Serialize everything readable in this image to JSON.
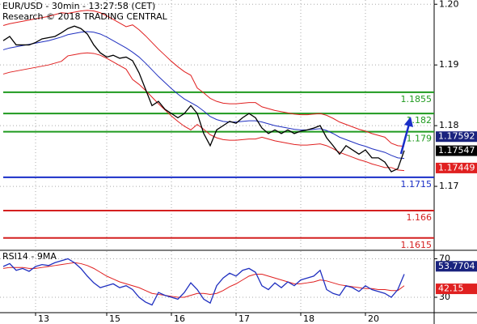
{
  "chart_data": [
    {
      "type": "line",
      "title": "EUR/USD - 30min - 13:27:58 (CET)",
      "subtitle": "Research © 2018 TRADING CENTRAL",
      "categories": [
        null,
        null,
        null,
        null,
        null,
        "13",
        null,
        null,
        null,
        null,
        null,
        null,
        null,
        null,
        null,
        null,
        "15",
        null,
        null,
        null,
        null,
        null,
        null,
        null,
        null,
        null,
        "16",
        null,
        null,
        null,
        null,
        null,
        null,
        null,
        null,
        null,
        "17",
        null,
        null,
        null,
        null,
        null,
        null,
        null,
        null,
        null,
        "18",
        null,
        null,
        null,
        null,
        null,
        null,
        null,
        null,
        null,
        "20",
        null,
        null,
        null,
        null,
        null,
        null
      ],
      "ylim": [
        1.1596,
        1.2007
      ],
      "yticks": [
        1.17,
        1.18,
        1.19,
        {
          "value": 1.2,
          "label": "1.20"
        }
      ],
      "grid": true,
      "series": [
        {
          "color": "#e02020",
          "values": [
            1.1965,
            1.1968,
            1.197,
            1.1972,
            1.1974,
            1.1976,
            1.1978,
            1.198,
            1.1983,
            1.1986,
            1.1985,
            1.1987,
            1.1989,
            1.199,
            1.1989,
            1.1986,
            1.1981,
            1.1975,
            1.1969,
            1.1963,
            1.1966,
            1.1958,
            1.1948,
            1.1937,
            1.1926,
            1.1916,
            1.1906,
            1.1897,
            1.1889,
            1.1883,
            1.1862,
            1.1854,
            1.1845,
            1.184,
            1.1837,
            1.1836,
            1.1836,
            1.1837,
            1.1838,
            1.1838,
            1.1831,
            1.1828,
            1.1825,
            1.1823,
            1.1821,
            1.1819,
            1.1818,
            1.1818,
            1.1819,
            1.182,
            1.1817,
            1.1812,
            1.1806,
            1.1802,
            1.1798,
            1.1794,
            1.1791,
            1.1787,
            1.1784,
            1.1781,
            1.1771,
            1.1767,
            1.1766
          ]
        },
        {
          "color": "#e02020",
          "values": [
            1.1885,
            1.1888,
            1.189,
            1.1892,
            1.1894,
            1.1896,
            1.1898,
            1.19,
            1.1903,
            1.1906,
            1.1915,
            1.1917,
            1.1919,
            1.192,
            1.1919,
            1.1916,
            1.1911,
            1.1905,
            1.1899,
            1.1893,
            1.1876,
            1.1868,
            1.1858,
            1.1847,
            1.1836,
            1.1826,
            1.1816,
            1.1807,
            1.1799,
            1.1793,
            1.1802,
            1.1794,
            1.1785,
            1.178,
            1.1777,
            1.1776,
            1.1776,
            1.1777,
            1.1778,
            1.1778,
            1.1781,
            1.1778,
            1.1775,
            1.1773,
            1.1771,
            1.1769,
            1.1768,
            1.1768,
            1.1769,
            1.177,
            1.1767,
            1.1762,
            1.1756,
            1.1752,
            1.1748,
            1.1744,
            1.1741,
            1.1737,
            1.1734,
            1.1731,
            1.1731,
            1.1727,
            1.1726
          ]
        },
        {
          "color": "#2030c0",
          "values": [
            1.1925,
            1.1928,
            1.193,
            1.1932,
            1.1934,
            1.1936,
            1.1938,
            1.194,
            1.1943,
            1.1946,
            1.195,
            1.1952,
            1.1954,
            1.1955,
            1.1954,
            1.1951,
            1.1946,
            1.194,
            1.1934,
            1.1928,
            1.1921,
            1.1913,
            1.1903,
            1.1892,
            1.1881,
            1.1871,
            1.1861,
            1.1852,
            1.1844,
            1.1838,
            1.1832,
            1.1824,
            1.1815,
            1.181,
            1.1807,
            1.1806,
            1.1806,
            1.1807,
            1.1808,
            1.1808,
            1.1806,
            1.1803,
            1.18,
            1.1798,
            1.1796,
            1.1794,
            1.1793,
            1.1793,
            1.1794,
            1.1795,
            1.1792,
            1.1787,
            1.1781,
            1.1777,
            1.1773,
            1.1769,
            1.1766,
            1.1762,
            1.1759,
            1.1756,
            1.1751,
            1.1747,
            1.1746
          ]
        },
        {
          "color": "#000000",
          "values": [
            1.194,
            1.1947,
            1.1933,
            1.1933,
            1.1933,
            1.1937,
            1.1943,
            1.1945,
            1.1947,
            1.1953,
            1.196,
            1.1964,
            1.196,
            1.1951,
            1.1933,
            1.192,
            1.1913,
            1.1916,
            1.1911,
            1.1913,
            1.1907,
            1.1887,
            1.186,
            1.1833,
            1.184,
            1.1827,
            1.182,
            1.1813,
            1.182,
            1.1833,
            1.182,
            1.1787,
            1.1767,
            1.1793,
            1.18,
            1.1807,
            1.1804,
            1.1813,
            1.182,
            1.1813,
            1.1796,
            1.1787,
            1.1793,
            1.1787,
            1.1793,
            1.1787,
            1.1791,
            1.1793,
            1.1796,
            1.18,
            1.178,
            1.1767,
            1.1753,
            1.1767,
            1.176,
            1.1753,
            1.176,
            1.1747,
            1.1747,
            1.174,
            1.1724,
            1.1729,
            1.1759
          ]
        }
      ],
      "levels": [
        {
          "value": 1.1855,
          "color": "#1f9a1f"
        },
        {
          "value": 1.182,
          "color": "#1f9a1f"
        },
        {
          "value": 1.179,
          "color": "#1f9a1f"
        },
        {
          "value": 1.1715,
          "color": "#1a2fc8"
        },
        {
          "value": 1.166,
          "color": "#d42020"
        },
        {
          "value": 1.1615,
          "color": "#d42020"
        }
      ],
      "price_tags": [
        {
          "value": 1.17592,
          "color": "#1a237e"
        },
        {
          "value": 1.17547,
          "color": "#000000"
        },
        {
          "value": 1.17449,
          "color": "#e02020"
        }
      ]
    },
    {
      "type": "line",
      "title": "RSI14 - 9MA",
      "ylim": [
        14,
        78
      ],
      "yticks": [
        30,
        70
      ],
      "grid": true,
      "series": [
        {
          "color": "#e02020",
          "values": [
            60,
            61,
            61,
            61,
            60,
            60,
            61,
            62,
            63,
            64,
            65,
            66,
            65,
            63,
            60,
            56,
            52,
            49,
            46,
            44,
            42,
            40,
            37,
            34,
            33,
            32,
            31,
            30,
            30,
            32,
            34,
            34,
            33,
            34,
            37,
            41,
            44,
            48,
            52,
            54,
            54,
            52,
            50,
            48,
            46,
            44,
            44,
            45,
            46,
            48,
            47,
            45,
            43,
            42,
            41,
            40,
            39,
            39,
            38,
            38,
            37,
            37,
            42
          ]
        },
        {
          "color": "#2030c0",
          "values": [
            62,
            65,
            58,
            60,
            57,
            62,
            64,
            63,
            66,
            68,
            70,
            66,
            60,
            52,
            45,
            40,
            42,
            44,
            40,
            42,
            38,
            30,
            25,
            22,
            35,
            32,
            30,
            28,
            35,
            45,
            38,
            28,
            24,
            42,
            50,
            55,
            52,
            58,
            60,
            56,
            42,
            38,
            45,
            40,
            46,
            42,
            48,
            50,
            52,
            58,
            38,
            34,
            32,
            42,
            40,
            36,
            42,
            38,
            36,
            34,
            30,
            38,
            54
          ]
        }
      ],
      "price_tags": [
        {
          "value": 53.7704,
          "color": "#1a237e"
        },
        {
          "value": 42.15,
          "color": "#e02020"
        }
      ]
    }
  ]
}
